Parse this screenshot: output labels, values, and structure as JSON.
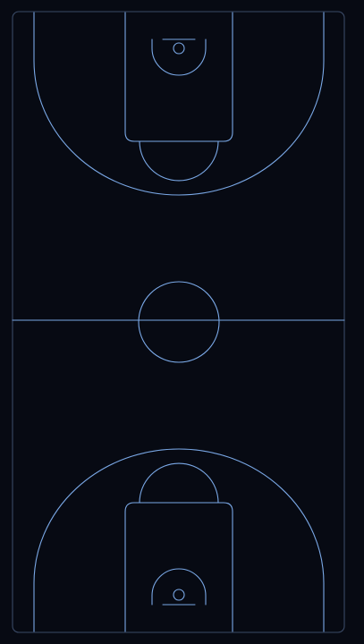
{
  "court": {
    "background_color": "#070a13",
    "line_color": "#7aa8e6",
    "border_color": "#3a4a66",
    "orientation": "vertical"
  }
}
